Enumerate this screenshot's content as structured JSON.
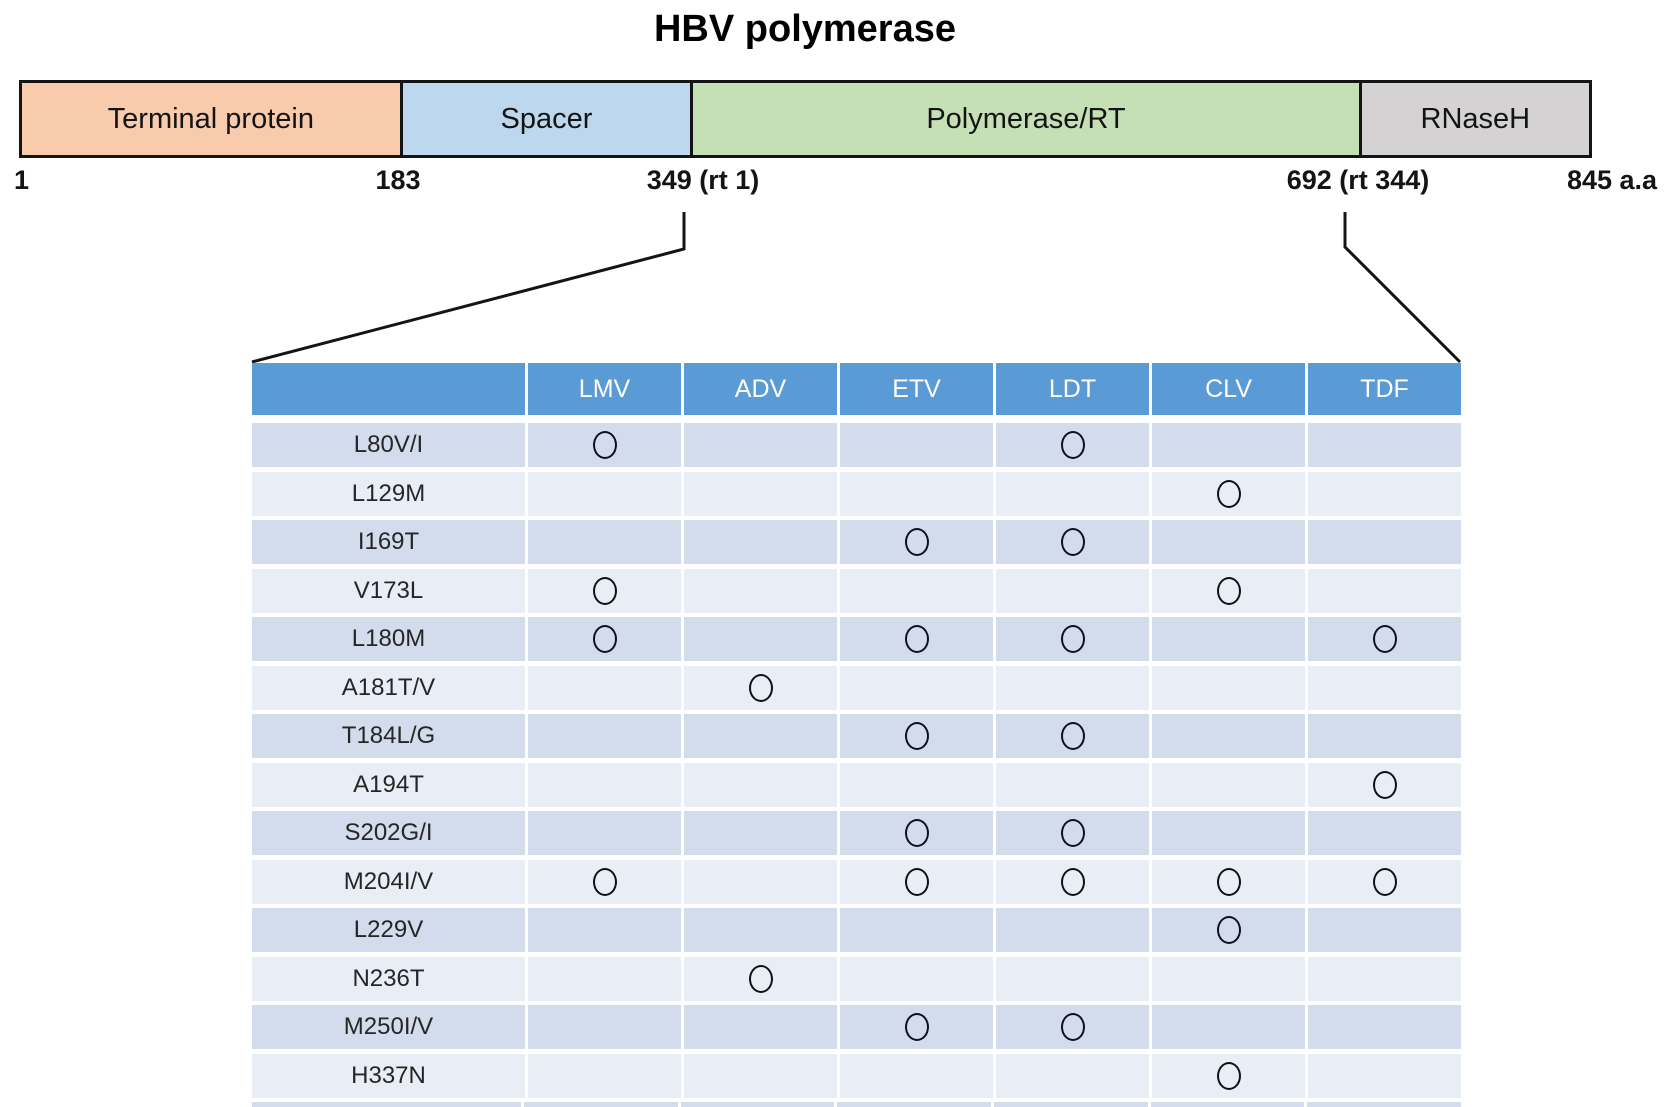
{
  "title": "HBV polymerase",
  "diagram": {
    "domains": [
      {
        "label": "Terminal protein",
        "color": "#f8cbad",
        "width_pct": 24.1
      },
      {
        "label": "Spacer",
        "color": "#bdd7ee",
        "width_pct": 18.55
      },
      {
        "label": "Polymerase/RT",
        "color": "#c5e0b4",
        "width_pct": 42.65
      },
      {
        "label": "RNaseH",
        "color": "#d4d2d2",
        "width_pct": 14.7
      }
    ],
    "scale_labels": [
      "1",
      "183",
      "349 (rt 1)",
      "692 (rt 344)",
      "845 a.a"
    ]
  },
  "table": {
    "columns": [
      "LMV",
      "ADV",
      "ETV",
      "LDT",
      "CLV",
      "TDF"
    ],
    "marker_symbol": "circle",
    "rows": [
      {
        "mutation": "L80V/I",
        "resistance": [
          "LMV",
          "LDT"
        ]
      },
      {
        "mutation": "L129M",
        "resistance": [
          "CLV"
        ]
      },
      {
        "mutation": "I169T",
        "resistance": [
          "ETV",
          "LDT"
        ]
      },
      {
        "mutation": "V173L",
        "resistance": [
          "LMV",
          "CLV"
        ]
      },
      {
        "mutation": "L180M",
        "resistance": [
          "LMV",
          "ETV",
          "LDT",
          "TDF"
        ]
      },
      {
        "mutation": "A181T/V",
        "resistance": [
          "ADV"
        ]
      },
      {
        "mutation": "T184L/G",
        "resistance": [
          "ETV",
          "LDT"
        ]
      },
      {
        "mutation": "A194T",
        "resistance": [
          "TDF"
        ]
      },
      {
        "mutation": "S202G/I",
        "resistance": [
          "ETV",
          "LDT"
        ]
      },
      {
        "mutation": "M204I/V",
        "resistance": [
          "LMV",
          "ETV",
          "LDT",
          "CLV",
          "TDF"
        ]
      },
      {
        "mutation": "L229V",
        "resistance": [
          "CLV"
        ]
      },
      {
        "mutation": "N236T",
        "resistance": [
          "ADV"
        ]
      },
      {
        "mutation": "M250I/V",
        "resistance": [
          "ETV",
          "LDT"
        ]
      },
      {
        "mutation": "H337N",
        "resistance": [
          "CLV"
        ]
      }
    ]
  },
  "colors": {
    "table_header": "#5b9bd5",
    "row_dark": "#d2dcec",
    "row_light": "#e9edf5",
    "line": "#141414"
  }
}
